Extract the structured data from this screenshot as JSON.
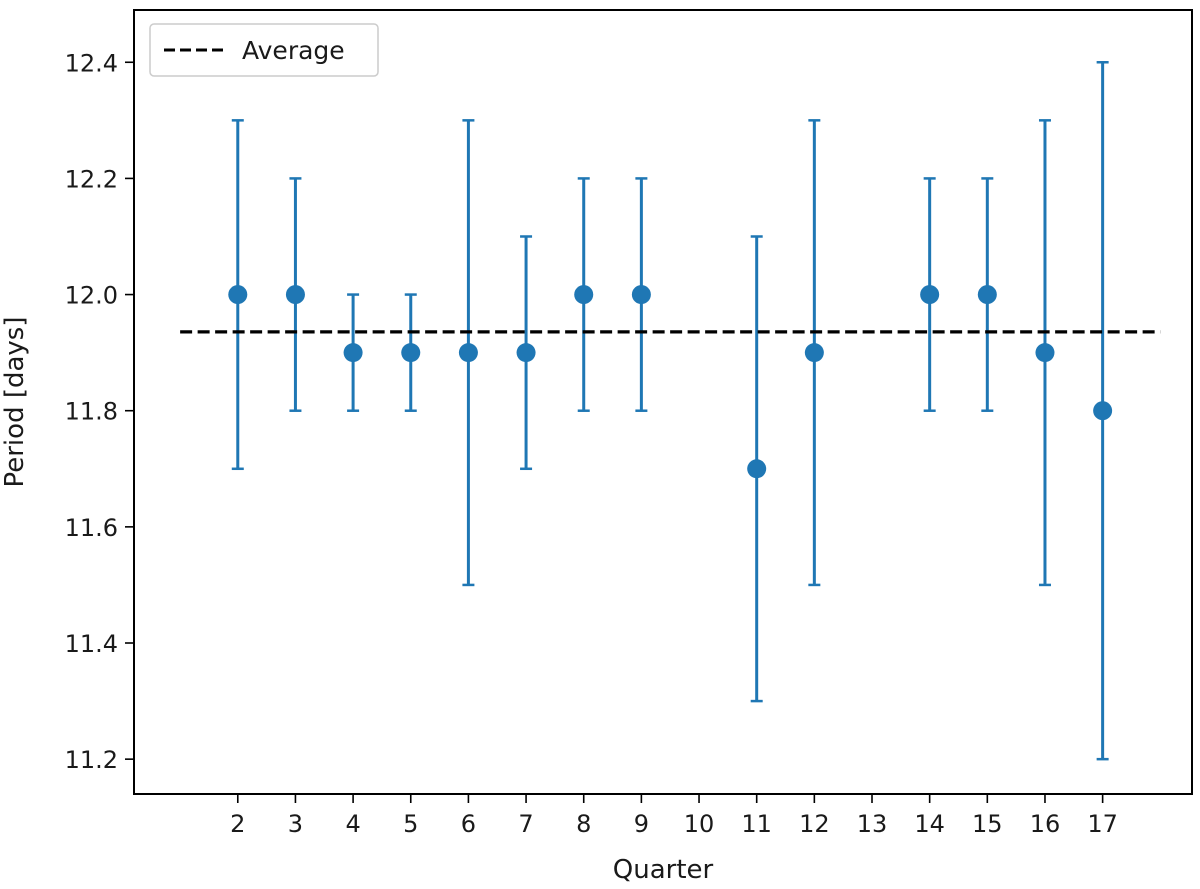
{
  "chart_data": {
    "type": "scatter",
    "title": "",
    "xlabel": "Quarter",
    "ylabel": "Period [days]",
    "x_tick_labels": [
      "2",
      "3",
      "4",
      "5",
      "6",
      "7",
      "8",
      "9",
      "10",
      "11",
      "12",
      "13",
      "14",
      "15",
      "16",
      "17"
    ],
    "y_tick_labels": [
      "11.2",
      "11.4",
      "11.6",
      "11.8",
      "12.0",
      "12.2",
      "12.4"
    ],
    "y_ticks": [
      11.2,
      11.4,
      11.6,
      11.8,
      12.0,
      12.2,
      12.4
    ],
    "xlim": [
      0.2,
      18.55
    ],
    "ylim": [
      11.14,
      12.49
    ],
    "grid": false,
    "legend": {
      "position": "top-left",
      "entries": [
        {
          "label": "Average",
          "style": "dashed-line"
        }
      ]
    },
    "series": [
      {
        "style": "points-with-error-bars",
        "color": "#1f77b4",
        "points": [
          {
            "x": 2,
            "y": 12.0,
            "err": 0.3
          },
          {
            "x": 3,
            "y": 12.0,
            "err": 0.2
          },
          {
            "x": 4,
            "y": 11.9,
            "err": 0.1
          },
          {
            "x": 5,
            "y": 11.9,
            "err": 0.1
          },
          {
            "x": 6,
            "y": 11.9,
            "err": 0.4
          },
          {
            "x": 7,
            "y": 11.9,
            "err": 0.2
          },
          {
            "x": 8,
            "y": 12.0,
            "err": 0.2
          },
          {
            "x": 9,
            "y": 12.0,
            "err": 0.2
          },
          {
            "x": 11,
            "y": 11.7,
            "err": 0.4
          },
          {
            "x": 12,
            "y": 11.9,
            "err": 0.4
          },
          {
            "x": 14,
            "y": 12.0,
            "err": 0.2
          },
          {
            "x": 15,
            "y": 12.0,
            "err": 0.2
          },
          {
            "x": 16,
            "y": 11.9,
            "err": 0.4
          },
          {
            "x": 17,
            "y": 11.8,
            "err": 0.6
          }
        ]
      },
      {
        "name": "Average",
        "style": "dashed-line",
        "color": "#000000",
        "x": [
          1.0,
          18.0
        ],
        "y": [
          11.9357,
          11.9357
        ]
      }
    ]
  }
}
